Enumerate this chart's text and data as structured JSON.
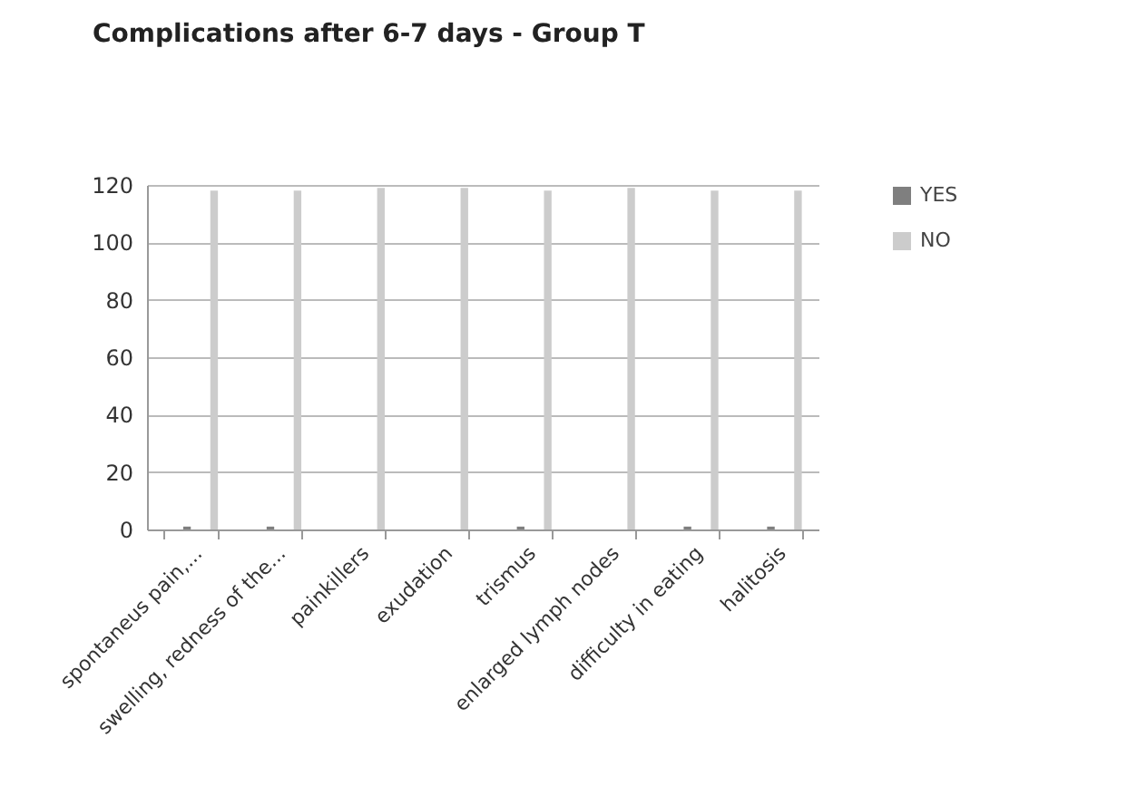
{
  "chart_data": {
    "type": "bar",
    "title": "Complications after 6-7 days - Group T",
    "categories": [
      "spontaneus pain,...",
      "swelling, redness of the...",
      "painkillers",
      "exudation",
      "trismus",
      "enlarged lymph nodes",
      "difficulty in eating",
      "halitosis"
    ],
    "series": [
      {
        "name": "YES",
        "color": "#7f7f7f",
        "values": [
          1,
          1,
          0,
          0,
          1,
          0,
          1,
          1
        ]
      },
      {
        "name": "NO",
        "color": "#cccccc",
        "values": [
          118,
          118,
          119,
          119,
          118,
          119,
          118,
          118
        ]
      }
    ],
    "ylim": [
      0,
      120
    ],
    "yticks": [
      0,
      20,
      40,
      60,
      80,
      100,
      120
    ],
    "grid": "y",
    "legend": "right"
  }
}
